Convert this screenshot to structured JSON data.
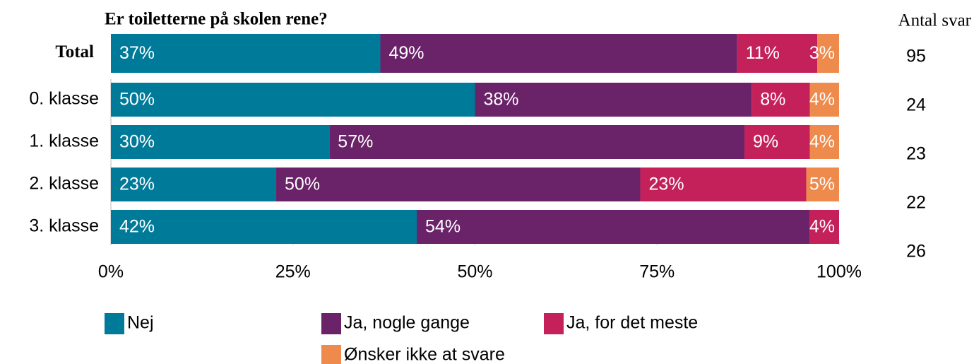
{
  "chart_data": {
    "type": "stacked-bar-horizontal",
    "title": "Er toiletterne på skolen rene?",
    "categories": [
      "Total",
      "0. klasse",
      "1. klasse",
      "2. klasse",
      "3. klasse"
    ],
    "series": [
      {
        "name": "Nej",
        "color": "#007a99",
        "values": [
          37,
          50,
          30,
          22.7,
          42
        ],
        "value_labels": [
          "37%",
          "50%",
          "30%",
          "23%",
          "42%"
        ]
      },
      {
        "name": "Ja, nogle gange",
        "color": "#6a2268",
        "values": [
          49,
          38,
          57,
          50,
          54
        ],
        "value_labels": [
          "49%",
          "38%",
          "57%",
          "50%",
          "54%"
        ]
      },
      {
        "name": "Ja, for det meste",
        "color": "#c4215a",
        "values": [
          11,
          8,
          9,
          22.8,
          4
        ],
        "value_labels": [
          "11%",
          "8%",
          "9%",
          "23%",
          "4%"
        ]
      },
      {
        "name": "Ønsker ikke at svare",
        "color": "#ee8a4b",
        "values": [
          3,
          4,
          4,
          4.5,
          null
        ],
        "value_labels": [
          "3%",
          "4%",
          "4%",
          "5%",
          null
        ]
      }
    ],
    "xlim": [
      0,
      100
    ],
    "xticks": [
      {
        "value": 0,
        "label": "0%"
      },
      {
        "value": 25,
        "label": "25%"
      },
      {
        "value": 50,
        "label": "50%"
      },
      {
        "value": 75,
        "label": "75%"
      },
      {
        "value": 100,
        "label": "100%"
      }
    ],
    "counts_title": "Antal svar",
    "counts": [
      95,
      24,
      23,
      22,
      26
    ]
  }
}
